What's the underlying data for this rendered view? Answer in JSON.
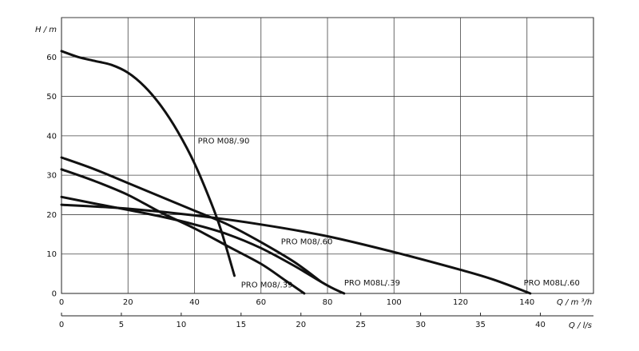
{
  "chart_data": {
    "type": "line",
    "title": "",
    "ylabel": "H / m",
    "xlabel": "Q / m ³/h",
    "x2label": "Q / l/s",
    "xlim": [
      0,
      160
    ],
    "ylim": [
      0,
      70
    ],
    "x2lim": [
      0,
      44.44
    ],
    "x_ticks": [
      0,
      20,
      40,
      60,
      80,
      100,
      120,
      140
    ],
    "y_ticks": [
      0,
      10,
      20,
      30,
      40,
      50,
      60
    ],
    "x2_ticks": [
      0,
      5,
      10,
      15,
      20,
      25,
      30,
      35,
      40
    ],
    "grid": true,
    "series": [
      {
        "name": "PRO M08/.90",
        "points": [
          [
            0,
            61.5
          ],
          [
            5,
            60
          ],
          [
            10,
            59
          ],
          [
            15,
            58
          ],
          [
            20,
            56
          ],
          [
            25,
            52.5
          ],
          [
            30,
            47.5
          ],
          [
            35,
            41
          ],
          [
            40,
            33
          ],
          [
            45,
            23
          ],
          [
            48,
            16
          ],
          [
            52,
            4.5
          ]
        ]
      },
      {
        "name": "PRO M08/.60",
        "points": [
          [
            0,
            34.5
          ],
          [
            10,
            31.5
          ],
          [
            20,
            28
          ],
          [
            30,
            24.5
          ],
          [
            40,
            21
          ],
          [
            50,
            17.5
          ],
          [
            60,
            13
          ],
          [
            70,
            8
          ],
          [
            78,
            3
          ]
        ]
      },
      {
        "name": "PRO M08/.39",
        "points": [
          [
            0,
            31.5
          ],
          [
            10,
            28.5
          ],
          [
            20,
            25
          ],
          [
            30,
            20.5
          ],
          [
            40,
            16.5
          ],
          [
            50,
            12
          ],
          [
            60,
            7.5
          ],
          [
            67,
            3.5
          ],
          [
            73,
            0
          ]
        ]
      },
      {
        "name": "PRO M08L/.39",
        "points": [
          [
            0,
            24.5
          ],
          [
            10,
            22.8
          ],
          [
            20,
            21.2
          ],
          [
            30,
            19.5
          ],
          [
            40,
            17.5
          ],
          [
            50,
            15
          ],
          [
            60,
            11.5
          ],
          [
            70,
            7
          ],
          [
            80,
            2
          ],
          [
            85,
            0
          ]
        ]
      },
      {
        "name": "PRO M08L/.60",
        "points": [
          [
            0,
            22.5
          ],
          [
            20,
            21.5
          ],
          [
            40,
            19.8
          ],
          [
            60,
            17.5
          ],
          [
            80,
            14.5
          ],
          [
            100,
            10.5
          ],
          [
            120,
            6
          ],
          [
            130,
            3.5
          ],
          [
            141,
            0
          ]
        ]
      }
    ]
  }
}
